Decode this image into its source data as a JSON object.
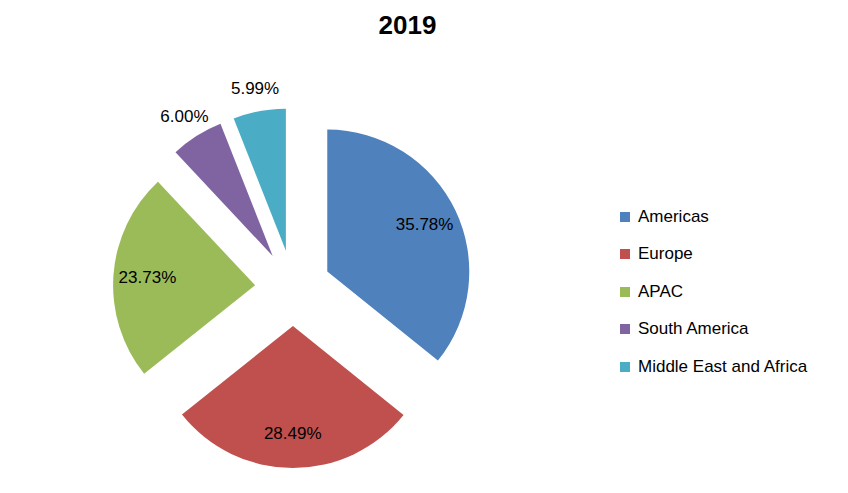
{
  "chart_data": {
    "type": "pie",
    "title": "2019",
    "categories": [
      "Americas",
      "Europe",
      "APAC",
      "South America",
      "Middle East and Africa"
    ],
    "values": [
      35.78,
      28.49,
      23.73,
      6.0,
      5.99
    ],
    "value_labels": [
      "35.78%",
      "28.49%",
      "23.73%",
      "6.00%",
      "5.99%"
    ],
    "colors": [
      "#4f81bd",
      "#c0504d",
      "#9bbb59",
      "#8064a2",
      "#4bacc6"
    ],
    "data_labels": true,
    "legend": "right"
  }
}
